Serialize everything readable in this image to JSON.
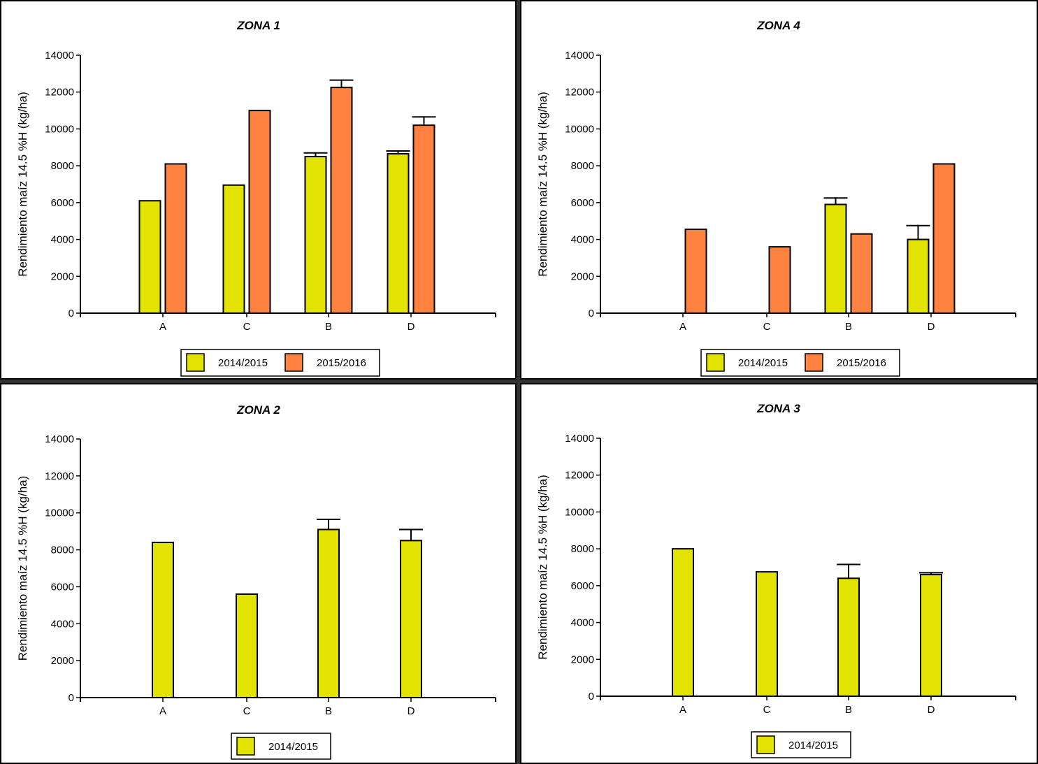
{
  "colors": {
    "series_2014": "#e3e300",
    "series_2015": "#ff8240",
    "axis": "#000000"
  },
  "chart_data": [
    {
      "type": "bar",
      "title": "ZONA 1",
      "xlabel": "",
      "ylabel": "Rendimiento maíz 14.5 %H  (kg/ha)",
      "ylim": [
        0,
        14000
      ],
      "yticks": [
        0,
        2000,
        4000,
        6000,
        8000,
        10000,
        12000,
        14000
      ],
      "grid": false,
      "legend_position": "bottom",
      "categories": [
        "A",
        "C",
        "B",
        "D"
      ],
      "series": [
        {
          "name": "2014/2015",
          "color": "#e3e300",
          "values": [
            6100,
            6950,
            8500,
            8650
          ],
          "errors": [
            0,
            0,
            200,
            150
          ]
        },
        {
          "name": "2015/2016",
          "color": "#ff8240",
          "values": [
            8100,
            11000,
            12250,
            10200
          ],
          "errors": [
            0,
            0,
            400,
            450
          ]
        }
      ]
    },
    {
      "type": "bar",
      "title": "ZONA 4",
      "xlabel": "",
      "ylabel": "Rendimiento maíz 14.5 %H  (kg/ha)",
      "ylim": [
        0,
        14000
      ],
      "yticks": [
        0,
        2000,
        4000,
        6000,
        8000,
        10000,
        12000,
        14000
      ],
      "grid": false,
      "legend_position": "bottom",
      "categories": [
        "A",
        "C",
        "B",
        "D"
      ],
      "series": [
        {
          "name": "2014/2015",
          "color": "#e3e300",
          "values": [
            null,
            null,
            5900,
            4000
          ],
          "errors": [
            0,
            0,
            350,
            750
          ]
        },
        {
          "name": "2015/2016",
          "color": "#ff8240",
          "values": [
            4550,
            3600,
            4300,
            8100
          ],
          "errors": [
            0,
            0,
            0,
            0
          ]
        }
      ]
    },
    {
      "type": "bar",
      "title": "ZONA 2",
      "xlabel": "",
      "ylabel": "Rendimiento maíz 14.5 %H  (kg/ha)",
      "ylim": [
        0,
        14000
      ],
      "yticks": [
        0,
        2000,
        4000,
        6000,
        8000,
        10000,
        12000,
        14000
      ],
      "grid": false,
      "legend_position": "bottom",
      "categories": [
        "A",
        "C",
        "B",
        "D"
      ],
      "series": [
        {
          "name": "2014/2015",
          "color": "#e3e300",
          "values": [
            8400,
            5600,
            9100,
            8500
          ],
          "errors": [
            0,
            0,
            550,
            600
          ]
        }
      ]
    },
    {
      "type": "bar",
      "title": "ZONA 3",
      "xlabel": "",
      "ylabel": "Rendimiento maíz 14.5 %H  (kg/ha)",
      "ylim": [
        0,
        14000
      ],
      "yticks": [
        0,
        2000,
        4000,
        6000,
        8000,
        10000,
        12000,
        14000
      ],
      "grid": false,
      "legend_position": "bottom",
      "categories": [
        "A",
        "C",
        "B",
        "D"
      ],
      "series": [
        {
          "name": "2014/2015",
          "color": "#e3e300",
          "values": [
            8000,
            6750,
            6400,
            6600
          ],
          "errors": [
            0,
            0,
            750,
            100
          ]
        }
      ]
    }
  ]
}
